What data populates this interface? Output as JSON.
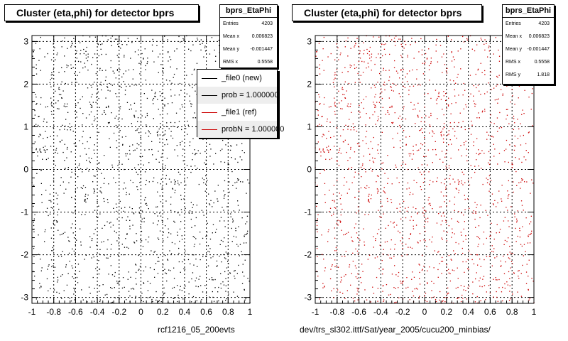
{
  "chart_data": [
    {
      "type": "scatter",
      "title": "Cluster (eta,phi) for detector bprs",
      "xlim": [
        -1,
        1
      ],
      "ylim": [
        -3.14,
        3.14
      ],
      "x_ticks": [
        "-1",
        "-0.8",
        "-0.6",
        "-0.4",
        "-0.2",
        "0",
        "0.2",
        "0.4",
        "0.6",
        "0.8",
        "1"
      ],
      "y_ticks": [
        "-3",
        "-2",
        "-1",
        "0",
        "1",
        "2",
        "3"
      ],
      "grid": true,
      "marker_color": "#000000",
      "stats": {
        "name": "bprs_EtaPhi",
        "rows": [
          {
            "label": "Entries",
            "value": "4203"
          },
          {
            "label": "Mean x",
            "value": "0.006823"
          },
          {
            "label": "Mean y",
            "value": "-0.001447"
          },
          {
            "label": "RMS x",
            "value": "0.5558"
          }
        ]
      },
      "legend": {
        "placement": "top-right",
        "entries": [
          {
            "label": "_file0 (new)",
            "color": "#000000"
          },
          {
            "label": "prob = 1.000000",
            "color": "#000000"
          },
          {
            "label": "_file1 (ref)",
            "color": "#cc0000"
          },
          {
            "label": "probN = 1.000000",
            "color": "#cc0000"
          }
        ]
      },
      "caption": "rcf1216_05_200evts"
    },
    {
      "type": "scatter",
      "title": "Cluster (eta,phi) for detector bprs",
      "xlim": [
        -1,
        1
      ],
      "ylim": [
        -3.14,
        3.14
      ],
      "x_ticks": [
        "-1",
        "-0.8",
        "-0.6",
        "-0.4",
        "-0.2",
        "0",
        "0.2",
        "0.4",
        "0.6",
        "0.8",
        "1"
      ],
      "y_ticks": [
        "-3",
        "-2",
        "-1",
        "0",
        "1",
        "2",
        "3"
      ],
      "grid": true,
      "marker_color": "#cc0000",
      "stats": {
        "name": "bprs_EtaPhi",
        "rows": [
          {
            "label": "Entries",
            "value": "4203"
          },
          {
            "label": "Mean x",
            "value": "0.006823"
          },
          {
            "label": "Mean y",
            "value": "-0.001447"
          },
          {
            "label": "RMS x",
            "value": "0.5558"
          },
          {
            "label": "RMS y",
            "value": "1.818"
          }
        ]
      },
      "caption": "dev/trs_sl302.ittf/Sat/year_2005/cucu200_minbias/"
    }
  ]
}
